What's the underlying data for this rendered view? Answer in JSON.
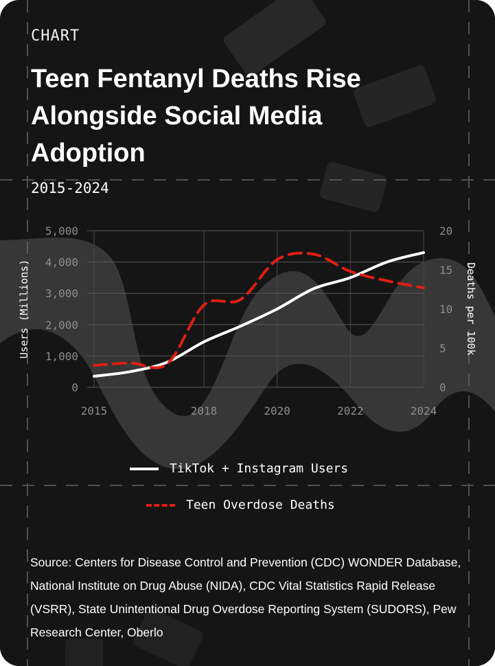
{
  "header": {
    "kicker": "CHART",
    "title": "Teen Fentanyl Deaths Rise Alongside Social Media Adoption",
    "subtitle": "2015-2024"
  },
  "colors": {
    "background": "#151515",
    "users_line": "#ffffff",
    "deaths_line": "#e01e12",
    "tick": "#8d8d8d"
  },
  "chart_data": {
    "type": "line",
    "x_ticks": [
      "2015",
      "2018",
      "2020",
      "2022",
      "2024"
    ],
    "x_range": [
      2015,
      2024
    ],
    "y_left": {
      "label": "Users (Millions)",
      "ticks": [
        "0",
        "1,000",
        "2,000",
        "3,000",
        "4,000",
        "5,000"
      ],
      "range": [
        0,
        5000
      ]
    },
    "y_right": {
      "label": "Deaths per 100k",
      "ticks": [
        "0",
        "5",
        "10",
        "15",
        "20"
      ],
      "range": [
        0,
        20
      ]
    },
    "grid": true,
    "series": [
      {
        "name": "TikTok + Instagram Users",
        "axis": "left",
        "style": "solid",
        "x": [
          2015,
          2016,
          2017,
          2018,
          2019,
          2020,
          2021,
          2022,
          2023,
          2024
        ],
        "values": [
          350,
          500,
          800,
          1450,
          1950,
          2500,
          3150,
          3500,
          4000,
          4300
        ]
      },
      {
        "name": "Teen Overdose Deaths",
        "axis": "right",
        "style": "dashed",
        "x": [
          2015,
          2016,
          2017,
          2018,
          2019,
          2020,
          2021,
          2022,
          2023,
          2024
        ],
        "values": [
          2.8,
          3.1,
          3.0,
          10.5,
          11.2,
          16.3,
          17.0,
          14.8,
          13.6,
          12.7
        ]
      }
    ],
    "legend_position": "bottom"
  },
  "source": "Source: Centers for Disease Control and Prevention (CDC) WONDER Database, National Institute on Drug Abuse (NIDA), CDC Vital Statistics Rapid Release (VSRR), State Unintentional Drug Overdose Reporting System (SUDORS), Pew Research Center, Oberlo"
}
